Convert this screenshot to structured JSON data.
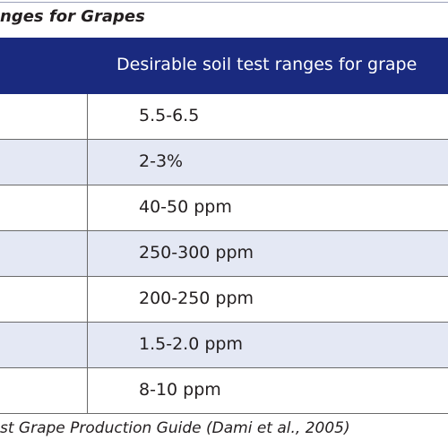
{
  "title": "nges for Grapes",
  "table": {
    "header": [
      "Desirable soil test ranges for grape"
    ],
    "rows": [
      [
        "5.5-6.5"
      ],
      [
        "2-3%"
      ],
      [
        "40-50 ppm"
      ],
      [
        "250-300 ppm"
      ],
      [
        "200-250 ppm"
      ],
      [
        "1.5-2.0 ppm"
      ],
      [
        "8-10 ppm"
      ]
    ]
  },
  "footer": "st Grape Production Guide (Dami et al., 2005)"
}
